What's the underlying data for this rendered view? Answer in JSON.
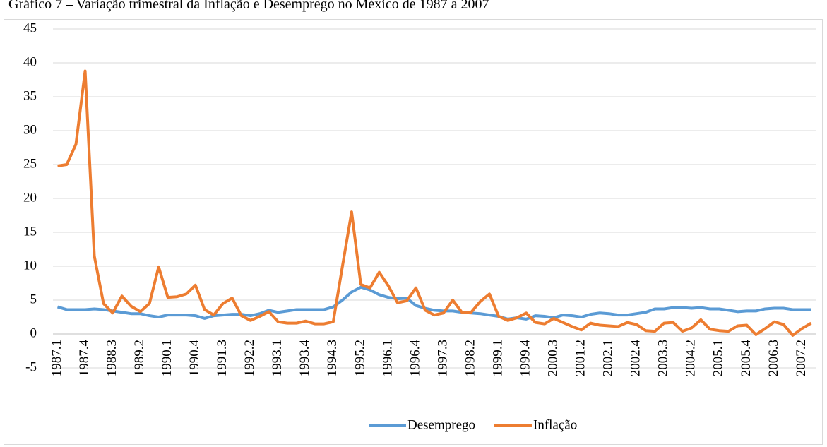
{
  "chart_data": {
    "type": "line",
    "title": "Gráfico 7 – Variação trimestral da Inflação e Desemprego no México de 1987 a 2007",
    "categories": [
      "1987.1",
      null,
      null,
      "1987.4",
      null,
      null,
      "1988.3",
      null,
      null,
      "1989.2",
      null,
      null,
      "1990.1",
      null,
      null,
      "1990.4",
      null,
      null,
      "1991.3",
      null,
      null,
      "1992.2",
      null,
      null,
      "1993.1",
      null,
      null,
      "1993.4",
      null,
      null,
      "1994.3",
      null,
      null,
      "1995.2",
      null,
      null,
      "1996.1",
      null,
      null,
      "1996.4",
      null,
      null,
      "1997.3",
      null,
      null,
      "1998.2",
      null,
      null,
      "1999.1",
      null,
      null,
      "1999.4",
      null,
      null,
      "2000.3",
      null,
      null,
      "2001.2",
      null,
      null,
      "2002.1",
      null,
      null,
      "2002.4",
      null,
      null,
      "2003.3",
      null,
      null,
      "2004.2",
      null,
      null,
      "2005.1",
      null,
      null,
      "2005.4",
      null,
      null,
      "2006.3",
      null,
      null,
      "2007.2",
      null
    ],
    "series": [
      {
        "name": "Desemprego",
        "color": "#5b9bd5",
        "values": [
          4.0,
          3.6,
          3.6,
          3.6,
          3.7,
          3.6,
          3.4,
          3.2,
          3.0,
          3.0,
          2.7,
          2.5,
          2.8,
          2.8,
          2.8,
          2.7,
          2.3,
          2.7,
          2.8,
          2.9,
          2.9,
          2.7,
          3.0,
          3.5,
          3.2,
          3.4,
          3.6,
          3.6,
          3.6,
          3.6,
          4.0,
          5.0,
          6.2,
          6.9,
          6.5,
          5.8,
          5.4,
          5.2,
          5.3,
          4.2,
          3.8,
          3.5,
          3.4,
          3.4,
          3.2,
          3.1,
          3.0,
          2.8,
          2.6,
          2.2,
          2.4,
          2.2,
          2.7,
          2.6,
          2.4,
          2.8,
          2.7,
          2.5,
          2.9,
          3.1,
          3.0,
          2.8,
          2.8,
          3.0,
          3.2,
          3.7,
          3.7,
          3.9,
          3.9,
          3.8,
          3.9,
          3.7,
          3.7,
          3.5,
          3.3,
          3.4,
          3.4,
          3.7,
          3.8,
          3.8,
          3.6,
          3.6,
          3.6
        ]
      },
      {
        "name": "Inflação",
        "color": "#ed7d31",
        "values": [
          24.8,
          25.0,
          28.0,
          38.8,
          11.5,
          4.5,
          3.1,
          5.6,
          4.1,
          3.3,
          4.5,
          9.9,
          5.4,
          5.5,
          5.9,
          7.2,
          3.6,
          2.8,
          4.5,
          5.3,
          2.7,
          2.0,
          2.6,
          3.3,
          1.8,
          1.6,
          1.6,
          1.9,
          1.5,
          1.5,
          1.8,
          10.0,
          18.0,
          7.3,
          6.8,
          9.1,
          7.1,
          4.6,
          4.9,
          6.8,
          3.5,
          2.8,
          3.1,
          5.0,
          3.2,
          3.2,
          4.8,
          5.9,
          2.6,
          2.0,
          2.4,
          3.1,
          1.7,
          1.5,
          2.3,
          1.7,
          1.1,
          0.6,
          1.6,
          1.3,
          1.2,
          1.1,
          1.7,
          1.4,
          0.5,
          0.4,
          1.6,
          1.7,
          0.4,
          0.9,
          2.1,
          0.7,
          0.5,
          0.4,
          1.2,
          1.3,
          -0.1,
          0.8,
          1.8,
          1.4,
          -0.2,
          0.8,
          1.6
        ]
      }
    ],
    "ylim": [
      -5,
      45
    ],
    "yticks": [
      -5,
      0,
      5,
      10,
      15,
      20,
      25,
      30,
      35,
      40,
      45
    ],
    "grid": true,
    "legend": "bottom"
  }
}
